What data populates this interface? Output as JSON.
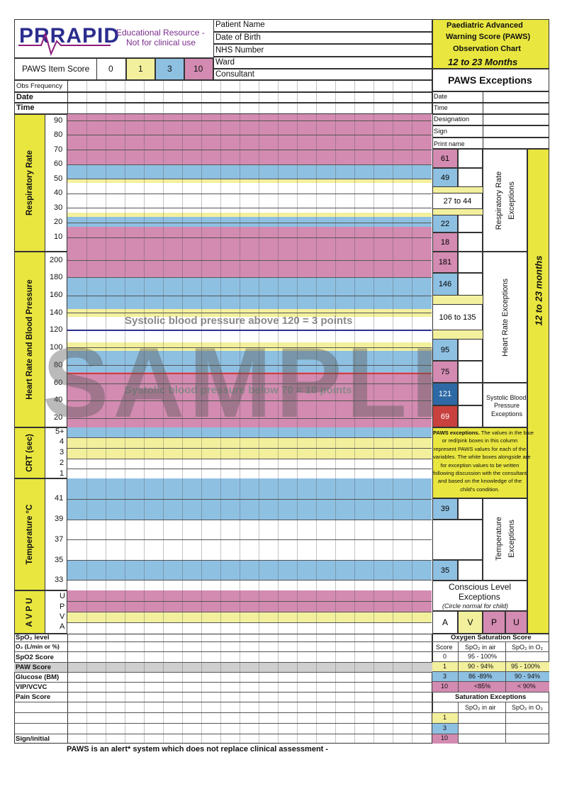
{
  "header": {
    "logo": "PRRAPID",
    "edu_line1": "Educational Resource -",
    "edu_line2": "Not for clinical use",
    "item_score_label": "PAWS Item Score",
    "item_scores": [
      "0",
      "1",
      "3",
      "10"
    ],
    "patient_fields": [
      "Patient Name",
      "Date of Birth",
      "NHS Number",
      "Ward",
      "Consultant"
    ],
    "title_line1": "Paediatric Advanced",
    "title_line2": "Warning Score (PAWS)",
    "title_line3": "Observation Chart",
    "age_range": "12 to 23 Months",
    "exceptions_title": "PAWS Exceptions"
  },
  "rows_top": {
    "obs_frequency": "Obs Frequency",
    "date": "Date",
    "time": "Time"
  },
  "exceptions_meta": [
    "Date",
    "Time",
    "Designation",
    "Sign",
    "Print name"
  ],
  "respiratory": {
    "label": "Respiratory Rate",
    "ticks": [
      "90",
      "80",
      "70",
      "60",
      "50",
      "40",
      "30",
      "20",
      "10"
    ],
    "exc_values": [
      "61",
      "49",
      "27 to 44",
      "22",
      "18"
    ],
    "exc_label_line1": "Respiratory Rate",
    "exc_label_line2": "Exceptions"
  },
  "heart": {
    "label": "Heart Rate and Blood Pressure",
    "ticks": [
      "200",
      "180",
      "160",
      "140",
      "120",
      "100",
      "80",
      "60",
      "40",
      "20"
    ],
    "bp_above": "Systolic blood pressure above 120 = 3 points",
    "bp_below": "Systolic blood pressure below 70 = 10 points",
    "exc_values": [
      "181",
      "146",
      "106 to 135",
      "95",
      "75",
      "121",
      "69"
    ],
    "exc_label": "Heart Rate Exceptions",
    "sbp_label_line1": "Systolic Blood",
    "sbp_label_line2": "Pressure",
    "sbp_label_line3": "Exceptions"
  },
  "watermark": "SAMPLE",
  "side_banner": "12 to 23 months",
  "crt": {
    "label": "CRT (sec)",
    "ticks": [
      "5+",
      "4",
      "3",
      "2",
      "1"
    ],
    "note_bold": "PAWS exceptions.",
    "note_lines": [
      "The values in the blue",
      "or red/pink boxes in this column",
      "represent  PAWS values for each of the",
      "variables. The white boxes alongside are",
      "for exception values to be written",
      "following discussion with the consultant",
      "and based on the knowledge of the",
      "child's condition."
    ]
  },
  "temperature": {
    "label": "Temperature °C",
    "ticks": [
      "41",
      "39",
      "37",
      "35",
      "33"
    ],
    "exc_values": [
      "39",
      "35"
    ],
    "exc_label_line1": "Temperature",
    "exc_label_line2": "Exceptions"
  },
  "avpu": {
    "label": "A V P U",
    "ticks": [
      "U",
      "P",
      "V",
      "A"
    ],
    "conscious_line1": "Conscious Level",
    "conscious_line2": "Exceptions",
    "conscious_note": "(Circle normal for child)",
    "levels": [
      "A",
      "V",
      "P",
      "U"
    ]
  },
  "bottom_rows": [
    "SpO₂ level",
    "O₂ (L/min or %)",
    "SpO2 Score",
    "PAW Score",
    "Glucose (BM)",
    "VIP/VCVC",
    "Pain Score",
    "",
    "",
    "",
    "Sign/initial"
  ],
  "oxygen_table": {
    "title": "Oxygen Saturation Score",
    "headers": [
      "Score",
      "SpO₂ in air",
      "SpO₂ in O₂"
    ],
    "rows": [
      [
        "0",
        "95 - 100%",
        ""
      ],
      [
        "1",
        "90 - 94%",
        "95 - 100%"
      ],
      [
        "3",
        "86 -89%",
        "90 - 94%"
      ],
      [
        "10",
        "<85%",
        "< 90%"
      ]
    ],
    "exc_title": "Saturation Exceptions",
    "exc_headers": [
      "",
      "SpO₂ in air",
      "SpO₂ in O₂"
    ],
    "exc_scores": [
      "1",
      "3",
      "10"
    ]
  },
  "footer": "PAWS is an alert* system which does not replace clinical assessment -"
}
